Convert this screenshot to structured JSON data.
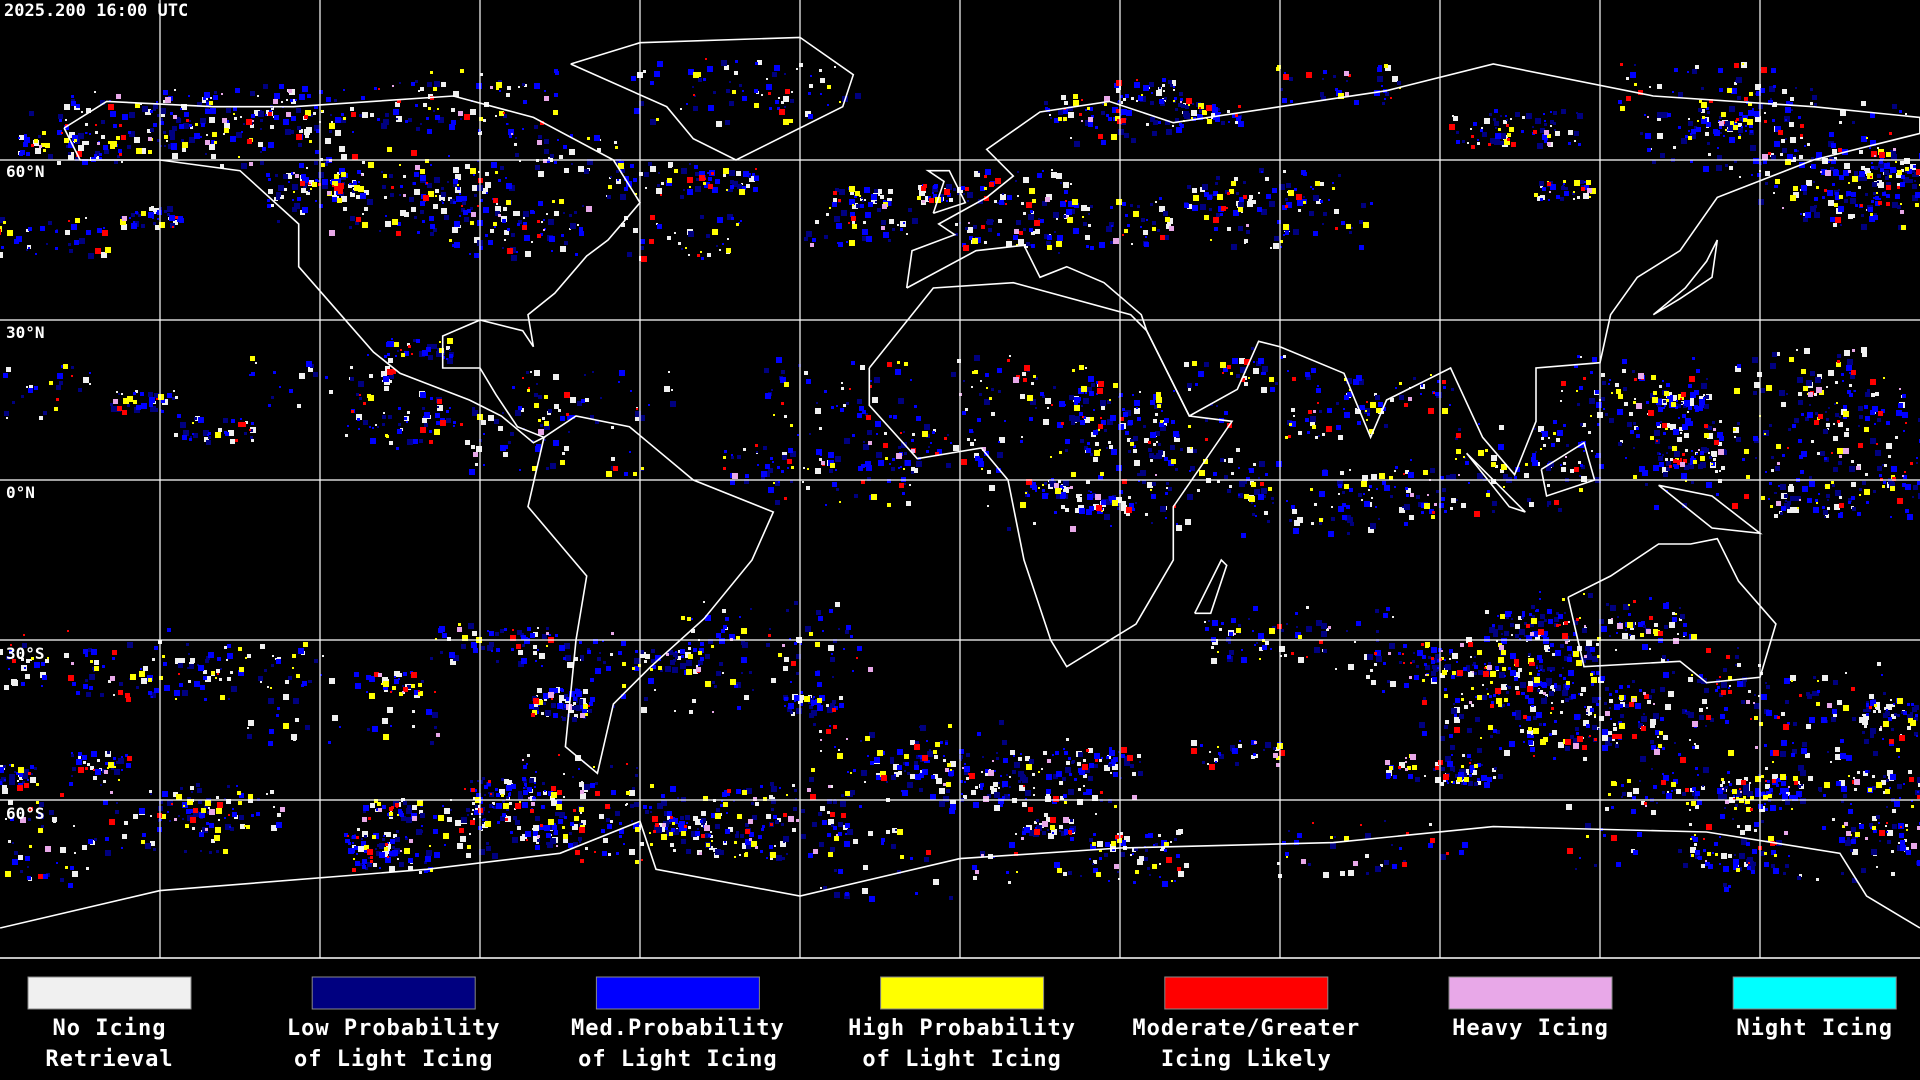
{
  "header": {
    "timestamp": "2025.200 16:00 UTC"
  },
  "map": {
    "latitude_labels": [
      "60°N",
      "30°N",
      "0°N",
      "30°S",
      "60°S"
    ]
  },
  "legend": [
    {
      "label_lines": [
        "No Icing",
        "Retrieval"
      ],
      "color": "#f0f0f0"
    },
    {
      "label_lines": [
        "Low Probability",
        "of Light Icing"
      ],
      "color": "#000080"
    },
    {
      "label_lines": [
        "Med.Probability",
        "of Light Icing"
      ],
      "color": "#0000ff"
    },
    {
      "label_lines": [
        "High Probability",
        "of Light Icing"
      ],
      "color": "#ffff00"
    },
    {
      "label_lines": [
        "Moderate/Greater",
        "Icing Likely"
      ],
      "color": "#ff0000"
    },
    {
      "label_lines": [
        "Heavy Icing"
      ],
      "color": "#e8a8e8"
    },
    {
      "label_lines": [
        "Night Icing"
      ],
      "color": "#00ffff"
    }
  ]
}
